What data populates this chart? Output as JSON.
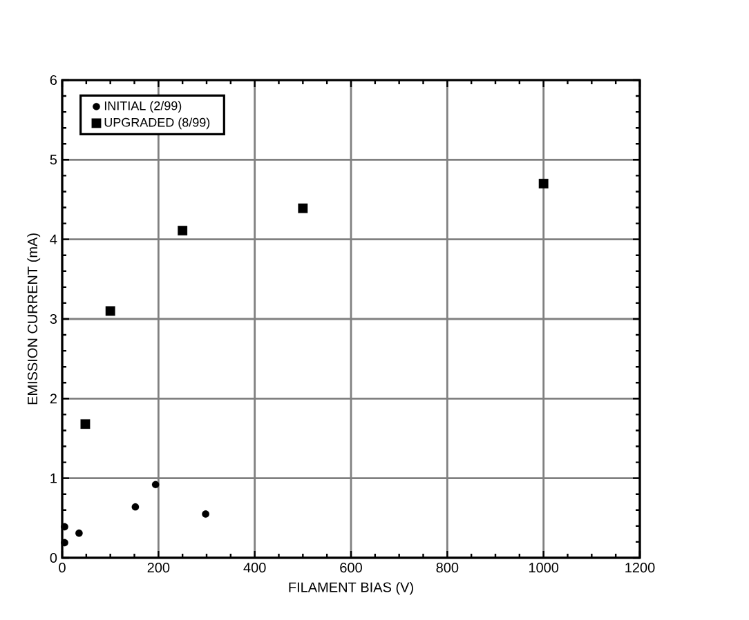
{
  "chart_data": {
    "type": "scatter",
    "xlabel": "FILAMENT BIAS (V)",
    "ylabel": "EMISSION CURRENT (mA)",
    "xlim": [
      0,
      1200
    ],
    "ylim": [
      0,
      6
    ],
    "xticks": [
      0,
      200,
      400,
      600,
      800,
      1000,
      1200
    ],
    "yticks": [
      0,
      1,
      2,
      3,
      4,
      5,
      6
    ],
    "grid": true,
    "legend": "top left",
    "series": [
      {
        "name": "INITIAL (2/99)",
        "color": "#000000",
        "marker": "circle",
        "x": [
          5,
          5,
          35,
          152,
          194,
          298
        ],
        "values": [
          0.39,
          0.19,
          0.31,
          0.64,
          0.92,
          0.55
        ]
      },
      {
        "name": "UPGRADED (8/99)",
        "color": "#000000",
        "marker": "square",
        "x": [
          48,
          100,
          250,
          500,
          1000
        ],
        "values": [
          1.68,
          3.1,
          4.11,
          4.39,
          4.7
        ]
      }
    ]
  }
}
